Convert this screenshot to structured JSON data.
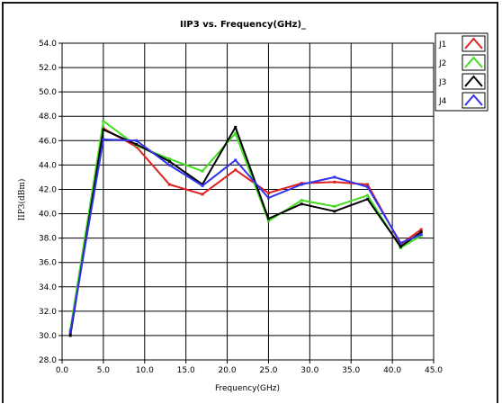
{
  "chart_data": {
    "type": "line",
    "title": "IIP3 vs. Frequency(GHz)_",
    "xlabel": "Frequency(GHz)",
    "ylabel": "IIP3(dBm)",
    "xlim": [
      0,
      45
    ],
    "ylim": [
      28,
      54
    ],
    "xticks": [
      "0.0",
      "5.0",
      "10.0",
      "15.0",
      "20.0",
      "25.0",
      "30.0",
      "35.0",
      "40.0",
      "45.0"
    ],
    "yticks": [
      "28.0",
      "30.0",
      "32.0",
      "34.0",
      "36.0",
      "38.0",
      "40.0",
      "42.0",
      "44.0",
      "46.0",
      "48.0",
      "50.0",
      "52.0",
      "54.0"
    ],
    "grid": true,
    "legend_position": "top-right",
    "x": [
      1,
      5,
      9,
      13,
      17,
      21,
      25,
      29,
      33,
      37,
      41,
      43.5
    ],
    "series": [
      {
        "name": "J1",
        "color": "#e02020",
        "values": [
          30.1,
          47.0,
          45.5,
          42.4,
          41.6,
          43.6,
          41.7,
          42.5,
          42.6,
          42.4,
          37.5,
          38.7
        ]
      },
      {
        "name": "J2",
        "color": "#44dd22",
        "values": [
          30.5,
          47.6,
          45.6,
          44.5,
          43.5,
          46.6,
          39.4,
          41.1,
          40.6,
          41.5,
          37.2,
          38.2
        ]
      },
      {
        "name": "J3",
        "color": "#000000",
        "values": [
          30.0,
          46.9,
          45.7,
          44.3,
          42.4,
          47.1,
          39.6,
          40.8,
          40.2,
          41.2,
          37.3,
          38.5
        ]
      },
      {
        "name": "J4",
        "color": "#3333ee",
        "values": [
          30.3,
          46.1,
          46.0,
          44.0,
          42.3,
          44.4,
          41.3,
          42.4,
          43.0,
          42.2,
          37.6,
          38.3
        ]
      }
    ]
  }
}
